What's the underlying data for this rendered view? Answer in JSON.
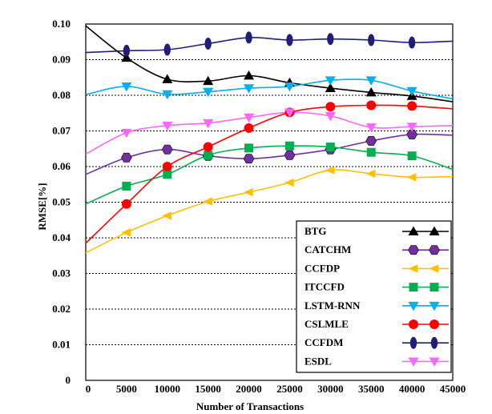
{
  "chart_data": {
    "type": "line",
    "title": "",
    "xlabel": "Number of Transactions",
    "ylabel": "RMSE[%]",
    "xlim": [
      0,
      45000
    ],
    "ylim": [
      0,
      0.1
    ],
    "grid": true,
    "legend_position": "bottom-right",
    "xticks": [
      0,
      5000,
      10000,
      15000,
      20000,
      25000,
      30000,
      35000,
      40000,
      45000
    ],
    "xtick_labels": [
      "0",
      "5000",
      "10000",
      "15000",
      "20000",
      "25000",
      "30000",
      "35000",
      "40000",
      "45000"
    ],
    "ytick_labels": [
      "0",
      "0.01",
      "0.02",
      "0.03",
      "0.04",
      "0.05",
      "0.06",
      "0.07",
      "0.08",
      "0.09",
      "0.10"
    ],
    "marker_x": [
      5000,
      10000,
      15000,
      20000,
      25000,
      30000,
      35000,
      40000
    ],
    "series": [
      {
        "name": "BTG",
        "color": "#000000",
        "marker": "triangle-up",
        "curve_x": [
          0,
          5000,
          10000,
          15000,
          20000,
          25000,
          30000,
          35000,
          40000,
          45000
        ],
        "curve_y": [
          0.0995,
          0.0905,
          0.0845,
          0.084,
          0.0855,
          0.0835,
          0.082,
          0.0808,
          0.0798,
          0.0782
        ],
        "values": [
          0.0905,
          0.0845,
          0.084,
          0.0855,
          0.0835,
          0.082,
          0.0808,
          0.0798
        ]
      },
      {
        "name": "CATCHM",
        "color": "#7030a0",
        "marker": "hexagon",
        "curve_x": [
          0,
          5000,
          10000,
          15000,
          20000,
          25000,
          30000,
          35000,
          40000,
          45000
        ],
        "curve_y": [
          0.0578,
          0.0625,
          0.0648,
          0.063,
          0.0622,
          0.0632,
          0.0648,
          0.0672,
          0.069,
          0.0688
        ],
        "values": [
          0.0625,
          0.0648,
          0.063,
          0.0622,
          0.0632,
          0.0648,
          0.0672,
          0.069
        ]
      },
      {
        "name": "CCFDP",
        "color": "#ffc000",
        "marker": "triangle-left",
        "curve_x": [
          0,
          5000,
          10000,
          15000,
          20000,
          25000,
          30000,
          35000,
          40000,
          45000
        ],
        "curve_y": [
          0.0358,
          0.0415,
          0.0462,
          0.0502,
          0.0528,
          0.0555,
          0.059,
          0.058,
          0.057,
          0.0572
        ],
        "values": [
          0.0415,
          0.0462,
          0.0502,
          0.0528,
          0.0555,
          0.059,
          0.058,
          0.057
        ]
      },
      {
        "name": "ITCCFD",
        "color": "#00b050",
        "marker": "square",
        "curve_x": [
          0,
          5000,
          10000,
          15000,
          20000,
          25000,
          30000,
          35000,
          40000,
          45000
        ],
        "curve_y": [
          0.0495,
          0.0545,
          0.0578,
          0.0632,
          0.0652,
          0.0658,
          0.0655,
          0.064,
          0.063,
          0.0592
        ],
        "values": [
          0.0545,
          0.0578,
          0.0632,
          0.0652,
          0.0658,
          0.0655,
          0.064,
          0.063
        ]
      },
      {
        "name": "LSTM-RNN",
        "color": "#00b0f0",
        "marker": "triangle-down",
        "curve_x": [
          0,
          5000,
          10000,
          15000,
          20000,
          25000,
          30000,
          35000,
          40000,
          45000
        ],
        "curve_y": [
          0.0802,
          0.0825,
          0.0803,
          0.081,
          0.082,
          0.0825,
          0.0842,
          0.0842,
          0.0812,
          0.079
        ],
        "values": [
          0.0825,
          0.0803,
          0.081,
          0.082,
          0.0825,
          0.0842,
          0.0842,
          0.0812
        ]
      },
      {
        "name": "CSLMLE",
        "color": "#ff0000",
        "marker": "circle",
        "curve_x": [
          0,
          5000,
          10000,
          15000,
          20000,
          25000,
          30000,
          35000,
          40000,
          45000
        ],
        "curve_y": [
          0.0385,
          0.0495,
          0.06,
          0.0655,
          0.0708,
          0.0752,
          0.0768,
          0.0772,
          0.077,
          0.0762
        ],
        "values": [
          0.0495,
          0.06,
          0.0655,
          0.0708,
          0.0752,
          0.0768,
          0.0772,
          0.077
        ]
      },
      {
        "name": "CCFDM",
        "color": "#1f1f7a",
        "marker": "ellipse",
        "curve_x": [
          0,
          5000,
          10000,
          15000,
          20000,
          25000,
          30000,
          35000,
          40000,
          45000
        ],
        "curve_y": [
          0.092,
          0.0925,
          0.0928,
          0.0945,
          0.0962,
          0.0955,
          0.0958,
          0.0955,
          0.0948,
          0.0952
        ],
        "values": [
          0.0925,
          0.0928,
          0.0945,
          0.0962,
          0.0955,
          0.0958,
          0.0955,
          0.0948
        ]
      },
      {
        "name": "ESDL",
        "color": "#ff66ff",
        "marker": "triangle-down",
        "curve_x": [
          0,
          5000,
          10000,
          15000,
          20000,
          25000,
          30000,
          35000,
          40000,
          45000
        ],
        "curve_y": [
          0.0635,
          0.0695,
          0.0715,
          0.0722,
          0.0738,
          0.0752,
          0.0742,
          0.071,
          0.0712,
          0.0715
        ],
        "values": [
          0.0695,
          0.0715,
          0.0722,
          0.0738,
          0.0752,
          0.0742,
          0.071,
          0.0712
        ]
      }
    ]
  }
}
